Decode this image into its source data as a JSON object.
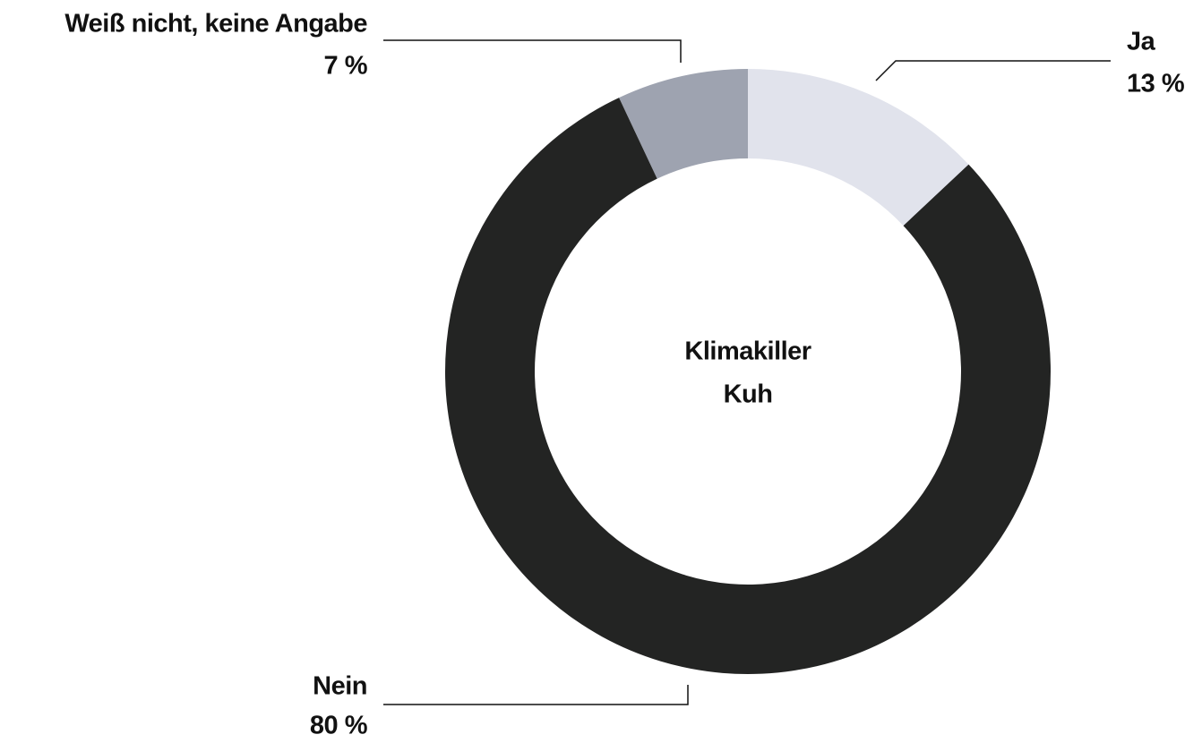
{
  "chart_data": {
    "type": "donut",
    "center_label": [
      "Klimakiller",
      "Kuh"
    ],
    "categories": [
      "Ja",
      "Nein",
      "Weiß nicht, keine Angabe"
    ],
    "values": [
      13,
      80,
      7
    ],
    "value_labels": [
      "13 %",
      "80 %",
      "7 %"
    ],
    "colors": [
      "#e1e3ec",
      "#232423",
      "#9ea3b0"
    ]
  }
}
